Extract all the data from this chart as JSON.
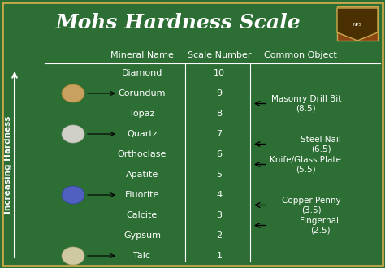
{
  "title": "Mohs Hardness Scale",
  "bg_color": "#2d6e35",
  "text_color": "white",
  "col_headers": [
    "Mineral Name",
    "Scale Number",
    "Common Object"
  ],
  "minerals": [
    "Diamond",
    "Corundum",
    "Topaz",
    "Quartz",
    "Orthoclase",
    "Apatite",
    "Fluorite",
    "Calcite",
    "Gypsum",
    "Talc"
  ],
  "scale_numbers": [
    "10",
    "9",
    "8",
    "7",
    "6",
    "5",
    "4",
    "3",
    "2",
    "1"
  ],
  "common_objects": [
    {
      "name": "Masonry Drill Bit\n(8.5)",
      "scale": 8.5
    },
    {
      "name": "Steel Nail\n(6.5)",
      "scale": 6.5
    },
    {
      "name": "Knife/Glass Plate\n(5.5)",
      "scale": 5.5
    },
    {
      "name": "Copper Penny\n(3.5)",
      "scale": 3.5
    },
    {
      "name": "Fingernail\n(2.5)",
      "scale": 2.5
    }
  ],
  "arrow_minerals": [
    "Corundum",
    "Quartz",
    "Fluorite",
    "Talc"
  ],
  "y_axis_label": "Increasing Hardness",
  "title_fontsize": 18,
  "header_fontsize": 8,
  "data_fontsize": 8,
  "obj_fontsize": 7.5,
  "arrow_color": "black",
  "line_color": "white",
  "border_color": "#c8a84b",
  "figw": 4.74,
  "figh": 3.3,
  "dpi": 100
}
